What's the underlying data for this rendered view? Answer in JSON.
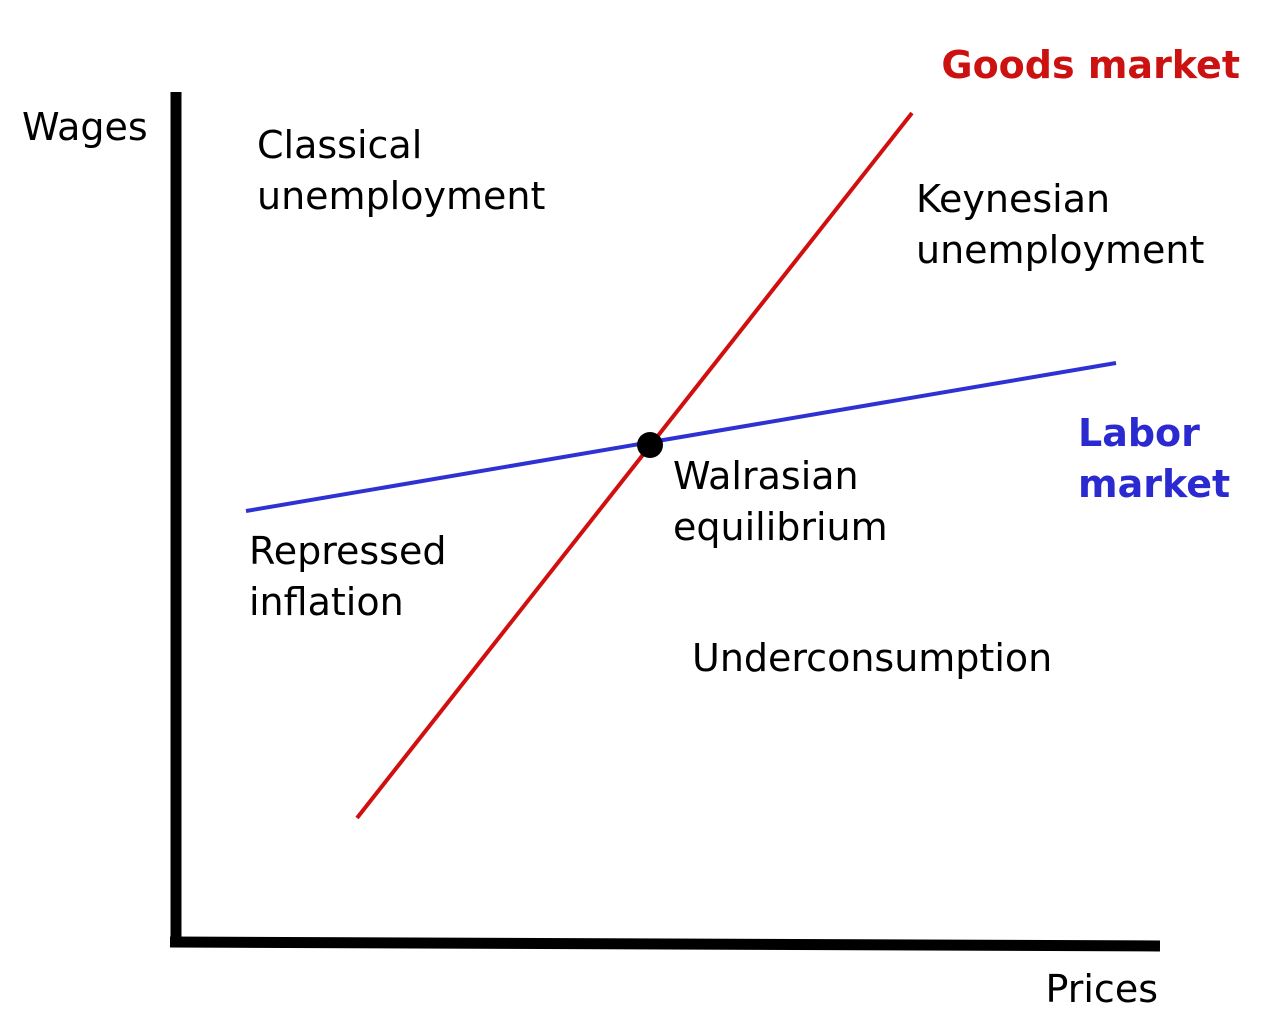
{
  "axes": {
    "y_label": "Wages",
    "x_label": "Prices"
  },
  "curves": {
    "goods": {
      "label": "Goods market"
    },
    "labor": {
      "label": [
        "Labor",
        "market"
      ]
    }
  },
  "regions": {
    "classical": [
      "Classical",
      "unemployment"
    ],
    "keynesian": [
      "Keynesian",
      "unemployment"
    ],
    "walrasian": [
      "Walrasian",
      "equilibrium"
    ],
    "repressed": [
      "Repressed",
      "inflation"
    ],
    "underconsumption": [
      "Underconsumption"
    ]
  }
}
